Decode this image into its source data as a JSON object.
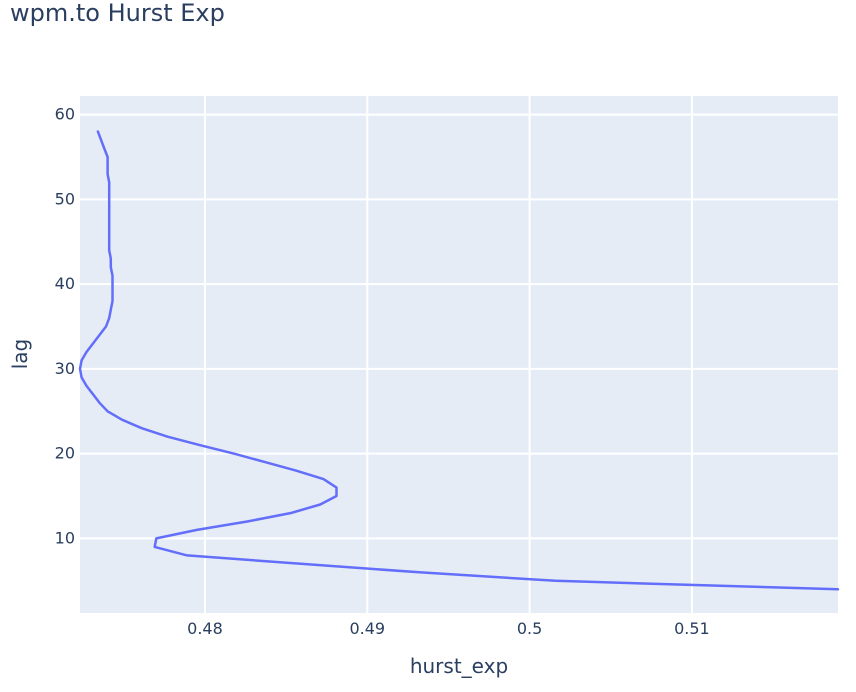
{
  "chart_data": {
    "type": "line",
    "title": "wpm.to Hurst Exp",
    "xlabel": "hurst_exp",
    "ylabel": "lag",
    "xlim": [
      0.4723,
      0.519
    ],
    "ylim": [
      1.2,
      62.2
    ],
    "x_ticks": [
      0.48,
      0.49,
      0.5,
      0.51
    ],
    "x_tick_labels": [
      "0.48",
      "0.49",
      "0.5",
      "0.51"
    ],
    "y_ticks": [
      10,
      20,
      30,
      40,
      50,
      60
    ],
    "y_tick_labels": [
      "10",
      "20",
      "30",
      "40",
      "50",
      "60"
    ],
    "grid": true,
    "colors": {
      "plot_bg": "#e5ecf6",
      "grid": "#ffffff",
      "line": "#636efa",
      "text": "#2a3f5f"
    },
    "series": [
      {
        "color": "#636efa",
        "x": [
          0.519,
          0.5016,
          0.4932,
          0.4859,
          0.4789,
          0.4769,
          0.477,
          0.4795,
          0.4826,
          0.4853,
          0.4871,
          0.4881,
          0.4881,
          0.4873,
          0.4856,
          0.4837,
          0.4818,
          0.4797,
          0.4777,
          0.4761,
          0.4749,
          0.474,
          0.4735,
          0.4731,
          0.4727,
          0.4724,
          0.4723,
          0.4724,
          0.4727,
          0.4731,
          0.4735,
          0.4739,
          0.4741,
          0.4742,
          0.4743,
          0.4743,
          0.4743,
          0.4743,
          0.4742,
          0.4742,
          0.4741,
          0.4741,
          0.4741,
          0.4741,
          0.4741,
          0.4741,
          0.4741,
          0.4741,
          0.4741,
          0.474,
          0.474,
          0.474,
          0.4738,
          0.4736,
          0.4734
        ],
        "y": [
          4,
          5,
          6,
          7,
          8,
          9,
          10,
          11,
          12,
          13,
          14,
          15,
          16,
          17,
          18,
          19,
          20,
          21,
          22,
          23,
          24,
          25,
          26,
          27,
          28,
          29,
          30,
          31,
          32,
          33,
          34,
          35,
          36,
          37,
          38,
          39,
          40,
          41,
          42,
          43,
          44,
          45,
          46,
          47,
          48,
          49,
          50,
          51,
          52,
          53,
          54,
          55,
          56,
          57,
          58
        ]
      }
    ]
  }
}
